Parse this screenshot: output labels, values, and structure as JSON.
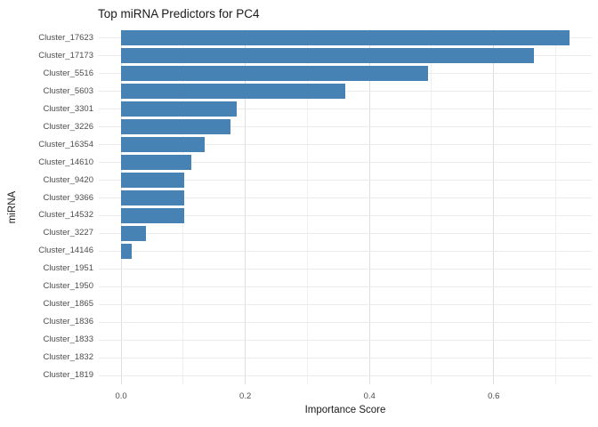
{
  "chart_data": {
    "type": "bar",
    "orientation": "horizontal",
    "title": "Top miRNA Predictors for PC4",
    "xlabel": "Importance Score",
    "ylabel": "miRNA",
    "categories": [
      "Cluster_17623",
      "Cluster_17173",
      "Cluster_5516",
      "Cluster_5603",
      "Cluster_3301",
      "Cluster_3226",
      "Cluster_16354",
      "Cluster_14610",
      "Cluster_9420",
      "Cluster_9366",
      "Cluster_14532",
      "Cluster_3227",
      "Cluster_14146",
      "Cluster_1951",
      "Cluster_1950",
      "Cluster_1865",
      "Cluster_1836",
      "Cluster_1833",
      "Cluster_1832",
      "Cluster_1819"
    ],
    "values": [
      0.722,
      0.665,
      0.495,
      0.361,
      0.186,
      0.176,
      0.135,
      0.113,
      0.102,
      0.101,
      0.101,
      0.04,
      0.017,
      0,
      0,
      0,
      0,
      0,
      0,
      0
    ],
    "xticks": [
      0.0,
      0.2,
      0.4,
      0.6
    ],
    "xtick_labels": [
      "0.0",
      "0.2",
      "0.4",
      "0.6"
    ],
    "minor_xticks": [
      0.1,
      0.3,
      0.5,
      0.7
    ],
    "xlim": [
      -0.036,
      0.758
    ],
    "grid": true,
    "legend": false,
    "bar_color": "#4682B4"
  },
  "colors": {
    "bar": "#4682B4",
    "grid_major": "#dedede",
    "grid_minor": "#efefef",
    "grid_row": "#ebebeb",
    "axis_text": "#4d4d4d",
    "title_text": "#1a1a1a",
    "background": "#ffffff"
  }
}
